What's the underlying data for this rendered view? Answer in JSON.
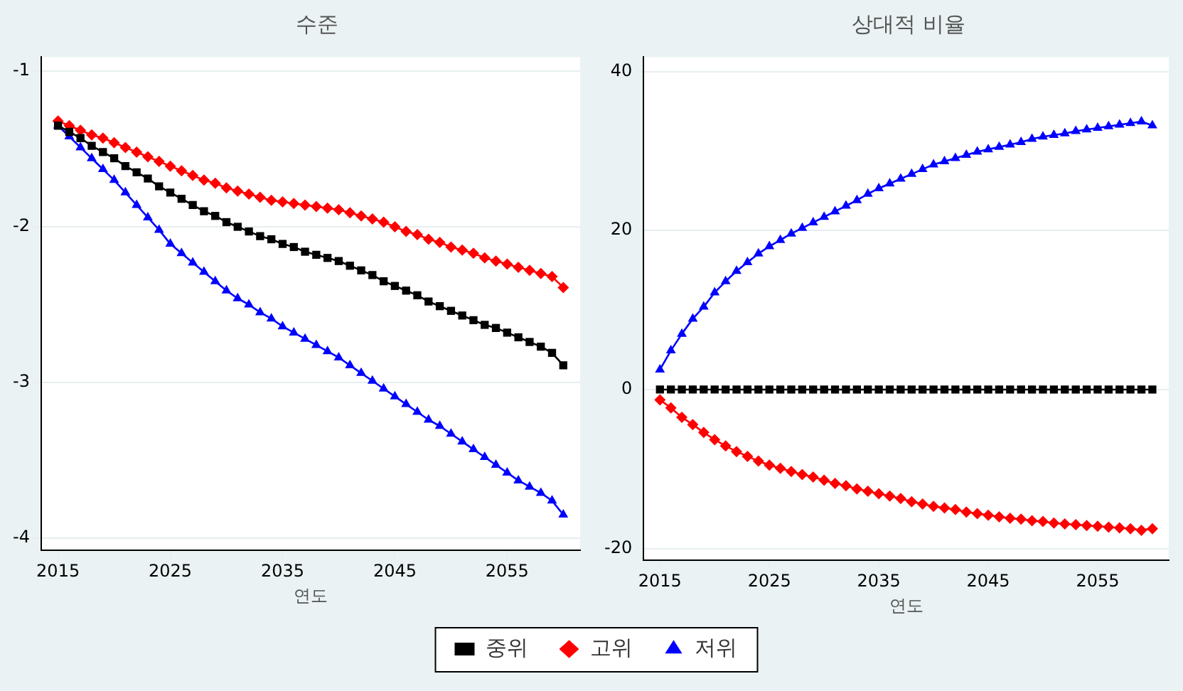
{
  "chart_data": [
    {
      "type": "line",
      "title": "수준",
      "xlabel": "연도",
      "x": [
        2015,
        2016,
        2017,
        2018,
        2019,
        2020,
        2021,
        2022,
        2023,
        2024,
        2025,
        2026,
        2027,
        2028,
        2029,
        2030,
        2031,
        2032,
        2033,
        2034,
        2035,
        2036,
        2037,
        2038,
        2039,
        2040,
        2041,
        2042,
        2043,
        2044,
        2045,
        2046,
        2047,
        2048,
        2049,
        2050,
        2051,
        2052,
        2053,
        2054,
        2055,
        2056,
        2057,
        2058,
        2059,
        2060
      ],
      "series": [
        {
          "name": "중위",
          "color": "#000000",
          "marker": "square",
          "values": [
            -1.35,
            -1.39,
            -1.43,
            -1.48,
            -1.52,
            -1.56,
            -1.61,
            -1.65,
            -1.69,
            -1.74,
            -1.78,
            -1.82,
            -1.86,
            -1.9,
            -1.93,
            -1.97,
            -2.0,
            -2.03,
            -2.06,
            -2.08,
            -2.11,
            -2.13,
            -2.16,
            -2.18,
            -2.2,
            -2.22,
            -2.25,
            -2.28,
            -2.31,
            -2.35,
            -2.38,
            -2.41,
            -2.44,
            -2.48,
            -2.51,
            -2.54,
            -2.57,
            -2.6,
            -2.63,
            -2.65,
            -2.68,
            -2.71,
            -2.74,
            -2.77,
            -2.81,
            -2.89
          ]
        },
        {
          "name": "고위",
          "color": "#ff0000",
          "marker": "diamond",
          "values": [
            -1.32,
            -1.35,
            -1.38,
            -1.41,
            -1.43,
            -1.46,
            -1.49,
            -1.52,
            -1.55,
            -1.58,
            -1.61,
            -1.64,
            -1.67,
            -1.7,
            -1.72,
            -1.75,
            -1.77,
            -1.79,
            -1.81,
            -1.83,
            -1.84,
            -1.85,
            -1.86,
            -1.87,
            -1.88,
            -1.89,
            -1.91,
            -1.93,
            -1.95,
            -1.97,
            -2.0,
            -2.03,
            -2.05,
            -2.08,
            -2.1,
            -2.13,
            -2.15,
            -2.17,
            -2.2,
            -2.22,
            -2.24,
            -2.26,
            -2.28,
            -2.3,
            -2.32,
            -2.39
          ]
        },
        {
          "name": "저위",
          "color": "#0000ff",
          "marker": "triangle",
          "values": [
            -1.35,
            -1.42,
            -1.49,
            -1.56,
            -1.63,
            -1.7,
            -1.78,
            -1.86,
            -1.94,
            -2.02,
            -2.11,
            -2.17,
            -2.23,
            -2.29,
            -2.35,
            -2.41,
            -2.46,
            -2.5,
            -2.55,
            -2.59,
            -2.64,
            -2.68,
            -2.72,
            -2.76,
            -2.8,
            -2.84,
            -2.89,
            -2.94,
            -2.99,
            -3.04,
            -3.09,
            -3.14,
            -3.19,
            -3.24,
            -3.28,
            -3.33,
            -3.38,
            -3.43,
            -3.48,
            -3.53,
            -3.58,
            -3.63,
            -3.67,
            -3.71,
            -3.76,
            -3.85
          ]
        }
      ],
      "xlim": [
        2013.5,
        2061.5
      ],
      "xticks": [
        2015,
        2025,
        2035,
        2045,
        2055
      ],
      "ylim": [
        -4.08,
        -0.91
      ],
      "yticks": [
        -4,
        -3,
        -2,
        -1
      ],
      "grid": "y",
      "legend": "bottom"
    },
    {
      "type": "line",
      "title": "상대적 비율",
      "xlabel": "연도",
      "x": [
        2015,
        2016,
        2017,
        2018,
        2019,
        2020,
        2021,
        2022,
        2023,
        2024,
        2025,
        2026,
        2027,
        2028,
        2029,
        2030,
        2031,
        2032,
        2033,
        2034,
        2035,
        2036,
        2037,
        2038,
        2039,
        2040,
        2041,
        2042,
        2043,
        2044,
        2045,
        2046,
        2047,
        2048,
        2049,
        2050,
        2051,
        2052,
        2053,
        2054,
        2055,
        2056,
        2057,
        2058,
        2059,
        2060
      ],
      "series": [
        {
          "color": "#000000",
          "marker": "square",
          "values": [
            0,
            0,
            0,
            0,
            0,
            0,
            0,
            0,
            0,
            0,
            0,
            0,
            0,
            0,
            0,
            0,
            0,
            0,
            0,
            0,
            0,
            0,
            0,
            0,
            0,
            0,
            0,
            0,
            0,
            0,
            0,
            0,
            0,
            0,
            0,
            0,
            0,
            0,
            0,
            0,
            0,
            0,
            0,
            0,
            0,
            0
          ]
        },
        {
          "color": "#ff0000",
          "marker": "diamond",
          "values": [
            -1.3,
            -2.3,
            -3.5,
            -4.4,
            -5.4,
            -6.3,
            -7.1,
            -7.8,
            -8.4,
            -9.0,
            -9.5,
            -9.9,
            -10.3,
            -10.7,
            -11.0,
            -11.4,
            -11.8,
            -12.1,
            -12.5,
            -12.8,
            -13.1,
            -13.4,
            -13.7,
            -14.1,
            -14.4,
            -14.7,
            -14.9,
            -15.1,
            -15.4,
            -15.6,
            -15.8,
            -16.0,
            -16.2,
            -16.3,
            -16.5,
            -16.6,
            -16.8,
            -16.9,
            -17.0,
            -17.1,
            -17.2,
            -17.3,
            -17.4,
            -17.5,
            -17.7,
            -17.5
          ]
        },
        {
          "color": "#0000ff",
          "marker": "triangle",
          "values": [
            2.5,
            4.9,
            7.0,
            8.9,
            10.4,
            12.2,
            13.6,
            14.9,
            16.0,
            17.1,
            18.0,
            18.8,
            19.6,
            20.3,
            21.0,
            21.7,
            22.4,
            23.1,
            23.8,
            24.6,
            25.3,
            25.9,
            26.5,
            27.1,
            27.7,
            28.3,
            28.7,
            29.1,
            29.5,
            29.9,
            30.2,
            30.5,
            30.8,
            31.1,
            31.5,
            31.8,
            32.0,
            32.2,
            32.5,
            32.7,
            32.9,
            33.1,
            33.3,
            33.5,
            33.7,
            33.2
          ]
        }
      ],
      "xlim": [
        2013.5,
        2061.5
      ],
      "xticks": [
        2015,
        2025,
        2035,
        2045,
        2055
      ],
      "ylim": [
        -21.5,
        41.8
      ],
      "yticks": [
        -20,
        0,
        20,
        40
      ],
      "grid": "y"
    }
  ]
}
